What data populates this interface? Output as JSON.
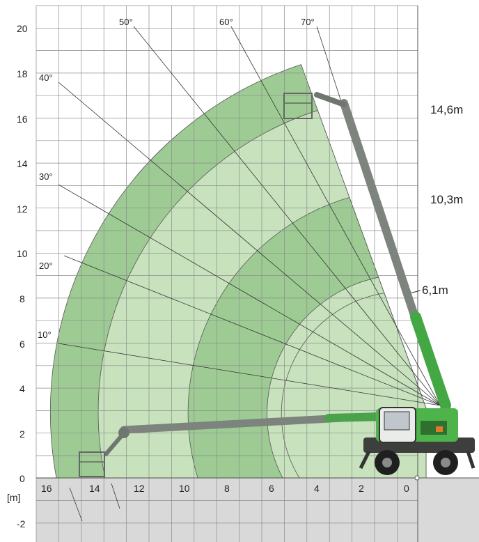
{
  "axis_unit_label": "[m]",
  "y_ticks": [
    "20",
    "18",
    "16",
    "14",
    "12",
    "10",
    "8",
    "6",
    "4",
    "2",
    "0",
    "-2"
  ],
  "x_ticks": [
    "16",
    "14",
    "12",
    "10",
    "8",
    "6",
    "4",
    "2",
    "0"
  ],
  "angles": [
    "10°",
    "20°",
    "30°",
    "40°",
    "50°",
    "60°",
    "70°"
  ],
  "boom_lengths": [
    "6,1m",
    "10,3m",
    "14,6m"
  ],
  "colors": {
    "zone_dark": "#9dcb93",
    "zone_light": "#c7e2bd",
    "ground": "#d9d9d9",
    "grid": "#8c8c8c",
    "machine_green": "#4db34a",
    "boom_grey": "#8a8f8a"
  }
}
